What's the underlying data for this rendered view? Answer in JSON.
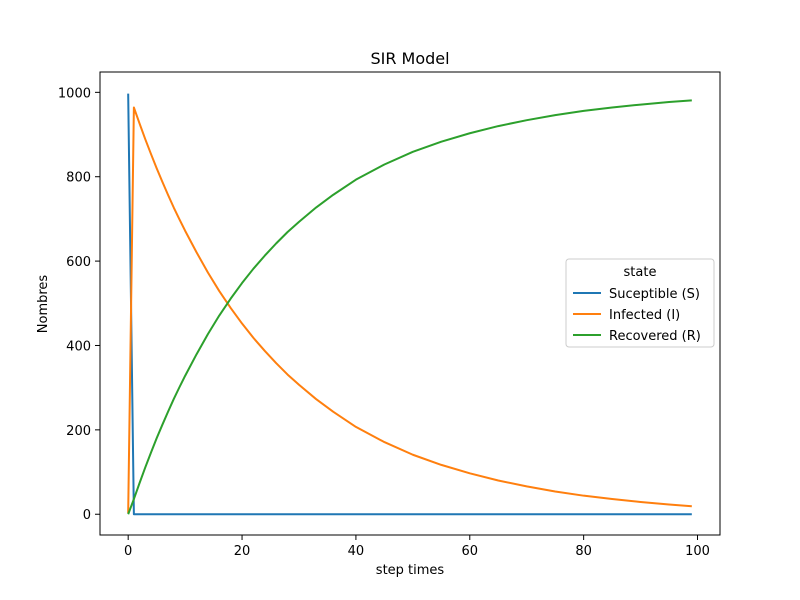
{
  "chart_data": {
    "type": "line",
    "title": "SIR Model",
    "xlabel": "step times",
    "ylabel": "Nombres",
    "xlim": [
      -4.95,
      103.95
    ],
    "ylim": [
      -49.2,
      1048.2
    ],
    "xticks": [
      0,
      20,
      40,
      60,
      80,
      100
    ],
    "yticks": [
      0,
      200,
      400,
      600,
      800,
      1000
    ],
    "grid": false,
    "legend": {
      "title": "state",
      "placement": "center-right"
    },
    "x": [
      0,
      1,
      2,
      3,
      4,
      5,
      6,
      7,
      8,
      9,
      10,
      12,
      14,
      16,
      18,
      20,
      22,
      24,
      26,
      28,
      30,
      33,
      36,
      40,
      45,
      50,
      55,
      60,
      65,
      70,
      75,
      80,
      85,
      90,
      95,
      99
    ],
    "series": [
      {
        "name": "Suceptible (S)",
        "color": "#1f77b4",
        "values": [
          997,
          0,
          0,
          0,
          0,
          0,
          0,
          0,
          0,
          0,
          0,
          0,
          0,
          0,
          0,
          0,
          0,
          0,
          0,
          0,
          0,
          0,
          0,
          0,
          0,
          0,
          0,
          0,
          0,
          0,
          0,
          0,
          0,
          0,
          0,
          0
        ]
      },
      {
        "name": "Infected (I)",
        "color": "#ff7f0e",
        "values": [
          3,
          964,
          926,
          889,
          854,
          820,
          788,
          757,
          727,
          699,
          672,
          621,
          573,
          529,
          489,
          452,
          418,
          387,
          358,
          331,
          307,
          273,
          243,
          207,
          171,
          141,
          117,
          97,
          80,
          66,
          54,
          44,
          36,
          29,
          23,
          19
        ]
      },
      {
        "name": "Recovered (R)",
        "color": "#2ca02c",
        "values": [
          0,
          36,
          74,
          111,
          146,
          180,
          212,
          243,
          273,
          301,
          328,
          379,
          427,
          471,
          511,
          548,
          582,
          613,
          642,
          669,
          693,
          727,
          757,
          793,
          829,
          859,
          883,
          903,
          920,
          934,
          946,
          956,
          964,
          971,
          977,
          981
        ]
      }
    ]
  }
}
